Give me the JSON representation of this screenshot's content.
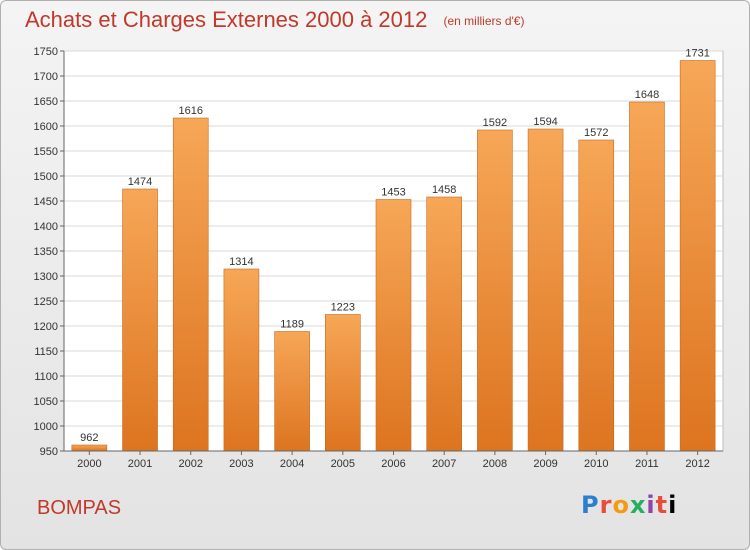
{
  "title": "Achats et Charges Externes 2000 à 2012",
  "unit": "(en milliers d'€)",
  "commune": "BOMPAS",
  "logo": {
    "letters": [
      "P",
      "r",
      "o",
      "x",
      "i",
      "t",
      "i"
    ]
  },
  "colors": {
    "bar_top": "#f6a757",
    "bar_bottom": "#dd7420",
    "title": "#c0392b"
  },
  "chart_data": {
    "type": "bar",
    "title": "Achats et Charges Externes 2000 à 2012",
    "categories": [
      "2000",
      "2001",
      "2002",
      "2003",
      "2004",
      "2005",
      "2006",
      "2007",
      "2008",
      "2009",
      "2010",
      "2011",
      "2012"
    ],
    "values": [
      962,
      1474,
      1616,
      1314,
      1189,
      1223,
      1453,
      1458,
      1592,
      1594,
      1572,
      1648,
      1731
    ],
    "ylim": [
      950,
      1750
    ],
    "yticks": [
      950,
      1000,
      1050,
      1100,
      1150,
      1200,
      1250,
      1300,
      1350,
      1400,
      1450,
      1500,
      1550,
      1600,
      1650,
      1700,
      1750
    ],
    "grid": true,
    "xlabel": "",
    "ylabel": ""
  }
}
